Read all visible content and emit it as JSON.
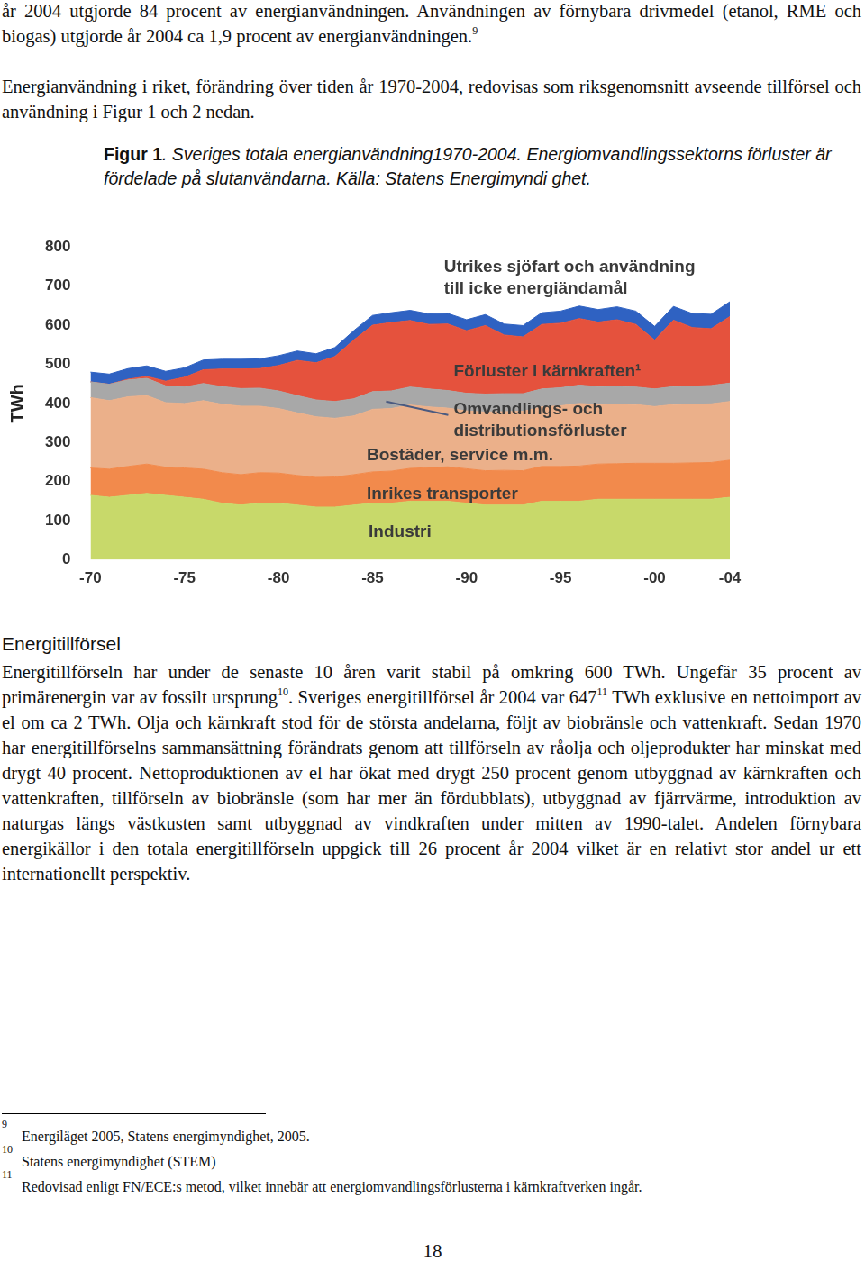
{
  "document": {
    "paragraphs_top": [
      [
        "år 2004 utgjorde 84 procent av energianvändningen. Användningen av förnybara drivmedel (etanol, RME och biogas) utgjorde år 2004 ca 1,9 procent av energianvändningen.",
        {
          "sup": "9"
        }
      ],
      [
        "Energianvändning i riket, förändring över tiden år 1970-2004, redovisas som riksgenomsnitt avseende tillförsel och användning i Figur 1 och 2 nedan."
      ]
    ],
    "figure_caption": {
      "label": "Figur 1",
      "text": ". Sveriges totala energianvändning1970-2004. Energiomvandlingssektorns förluster är fördelade på slutanvändarna. Källa: Statens Energimyndi ghet."
    },
    "section": {
      "heading": "Energitillförsel",
      "paragraph": [
        "Energitillförseln har under de senaste 10 åren varit stabil på omkring 600 TWh. Ungefär 35 procent av primärenergin var av fossilt ursprung",
        {
          "sup": "10"
        },
        ". Sveriges energitillförsel år 2004 var 647",
        {
          "sup": "11"
        },
        " TWh exklusive en nettoimport av el om ca 2 TWh. Olja och kärnkraft stod för de största andelarna, följt av biobränsle och vattenkraft. Sedan 1970 har energitillförselns sammansättning förändrats genom att tillförseln av råolja och oljeprodukter har minskat med drygt 40 procent. Nettoproduktionen av el har ökat med drygt 250 procent genom utbyggnad av kärnkraften och vattenkraften, tillförseln av biobränsle (som har mer än fördubblats), utbyggnad av fjärrvärme, introduktion av naturgas längs västkusten samt utbyggnad av vindkraften under mitten av 1990-talet. Andelen förnybara energikällor i den totala energitillförseln uppgick till 26 procent år 2004 vilket är en relativt stor andel ur ett internationellt perspektiv."
      ]
    },
    "footnotes": [
      {
        "number": "9",
        "text": "Energiläget 2005, Statens energimyndighet, 2005."
      },
      {
        "number": "10",
        "text": "Statens energimyndighet (STEM)"
      },
      {
        "number": "11",
        "text": "Redovisad enligt FN/ECE:s metod, vilket innebär att energiomvandlingsförlusterna i kärnkraftverken ingår."
      }
    ],
    "page_number": "18"
  },
  "chart_data": {
    "type": "area",
    "stacked": true,
    "y_label": "TWh",
    "categories": [
      "-70",
      null,
      null,
      null,
      null,
      "-75",
      null,
      null,
      null,
      null,
      "-80",
      null,
      null,
      null,
      null,
      "-85",
      null,
      null,
      null,
      null,
      "-90",
      null,
      null,
      null,
      null,
      "-95",
      null,
      null,
      null,
      null,
      "-00",
      null,
      null,
      null,
      "-04"
    ],
    "ylim": [
      0,
      800
    ],
    "yticks": [
      0,
      100,
      200,
      300,
      400,
      500,
      600,
      700,
      800
    ],
    "grid": false,
    "series": [
      {
        "name": "Industri",
        "color": "#c8d96a",
        "values": [
          165,
          160,
          165,
          170,
          165,
          160,
          155,
          145,
          140,
          145,
          145,
          140,
          135,
          135,
          140,
          145,
          145,
          150,
          150,
          150,
          145,
          140,
          140,
          140,
          150,
          150,
          150,
          155,
          155,
          155,
          155,
          155,
          155,
          155,
          160
        ]
      },
      {
        "name": "Inrikes transporter",
        "color": "#f28a4c",
        "values": [
          70,
          72,
          74,
          75,
          72,
          75,
          77,
          78,
          78,
          78,
          77,
          76,
          76,
          77,
          78,
          80,
          82,
          84,
          86,
          88,
          88,
          88,
          89,
          88,
          89,
          89,
          90,
          90,
          91,
          92,
          92,
          92,
          93,
          94,
          95
        ]
      },
      {
        "name": "Bostäder, service m.m.",
        "color": "#ebb08a",
        "values": [
          180,
          175,
          178,
          175,
          165,
          165,
          175,
          175,
          175,
          170,
          165,
          160,
          155,
          150,
          150,
          160,
          160,
          162,
          155,
          150,
          148,
          150,
          150,
          152,
          152,
          155,
          160,
          152,
          152,
          150,
          145,
          150,
          150,
          150,
          150
        ]
      },
      {
        "name": "Omvandlings- och\ndistributionsförluster",
        "color": "#a8a8a8",
        "values": [
          40,
          42,
          43,
          44,
          43,
          42,
          44,
          45,
          45,
          46,
          45,
          44,
          43,
          43,
          44,
          45,
          45,
          46,
          46,
          45,
          45,
          46,
          46,
          45,
          46,
          46,
          47,
          46,
          46,
          45,
          45,
          46,
          46,
          47,
          47
        ]
      },
      {
        "name": "Förluster i kärnkraften¹",
        "color": "#e5523d",
        "values": [
          0,
          0,
          2,
          5,
          12,
          25,
          35,
          45,
          50,
          50,
          65,
          90,
          95,
          115,
          150,
          170,
          175,
          170,
          165,
          170,
          160,
          175,
          150,
          145,
          165,
          165,
          170,
          165,
          170,
          160,
          125,
          170,
          150,
          145,
          170
        ]
      },
      {
        "name": "Utrikes sjöfart och användning\ntill icke energiändamål",
        "color": "#2f62c2",
        "values": [
          25,
          26,
          27,
          27,
          25,
          24,
          25,
          25,
          25,
          25,
          25,
          24,
          23,
          23,
          24,
          25,
          25,
          26,
          27,
          27,
          28,
          28,
          28,
          29,
          30,
          31,
          32,
          32,
          33,
          34,
          35,
          35,
          36,
          37,
          38
        ]
      }
    ]
  }
}
